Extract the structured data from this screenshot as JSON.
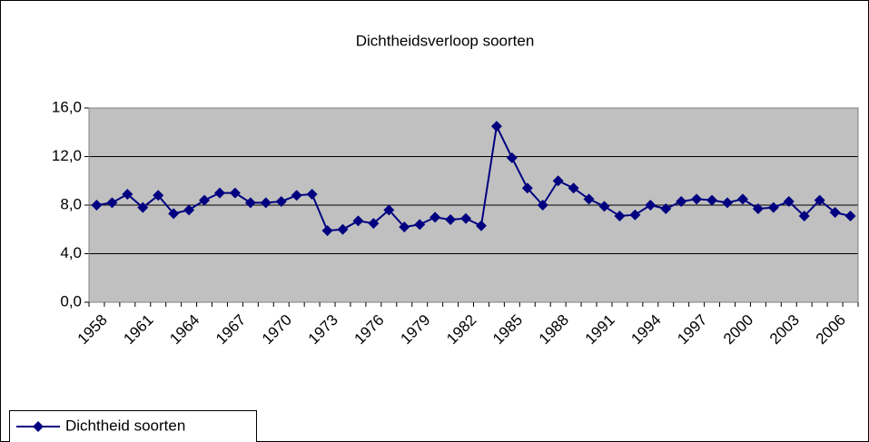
{
  "chart_data": {
    "type": "line",
    "title": "Dichtheidsverloop soorten",
    "categories": [
      "1958",
      null,
      null,
      "1961",
      null,
      null,
      "1964",
      null,
      null,
      "1967",
      null,
      null,
      "1970",
      null,
      null,
      "1973",
      null,
      null,
      "1976",
      null,
      null,
      "1979",
      null,
      null,
      "1982",
      null,
      null,
      "1985",
      null,
      null,
      "1988",
      null,
      null,
      "1991",
      null,
      null,
      "1994",
      null,
      null,
      "1997",
      null,
      null,
      "2000",
      null,
      null,
      "2003",
      null,
      null,
      "2006",
      null
    ],
    "series": [
      {
        "name": "Dichtheid soorten",
        "color": "#000080",
        "values": [
          8.0,
          8.2,
          8.9,
          7.8,
          8.8,
          7.3,
          7.6,
          8.4,
          9.0,
          9.0,
          8.2,
          8.2,
          8.3,
          8.8,
          8.9,
          5.9,
          6.0,
          6.7,
          6.5,
          7.6,
          6.2,
          6.4,
          7.0,
          6.8,
          6.9,
          6.3,
          14.5,
          11.9,
          9.4,
          8.0,
          10.0,
          9.4,
          8.5,
          7.9,
          7.1,
          7.2,
          8.0,
          7.7,
          8.3,
          8.5,
          8.4,
          8.2,
          8.5,
          7.7,
          7.8,
          8.3,
          7.1,
          8.4,
          7.4,
          7.1
        ]
      }
    ],
    "ylim": [
      0,
      16
    ],
    "yticks": [
      {
        "value": 0,
        "label": "0,0"
      },
      {
        "value": 4,
        "label": "4,0"
      },
      {
        "value": 8,
        "label": "8,0"
      },
      {
        "value": 12,
        "label": "12,0"
      },
      {
        "value": 16,
        "label": "16,0"
      }
    ],
    "grid": true,
    "plot_background": "#c0c0c0",
    "legend": "bottom-left"
  }
}
